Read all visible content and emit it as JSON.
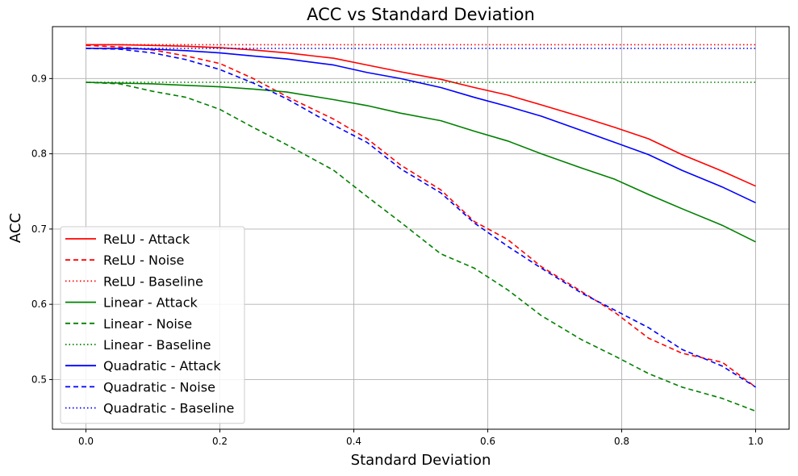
{
  "chart_data": {
    "type": "line",
    "title": "ACC vs Standard Deviation",
    "xlabel": "Standard Deviation",
    "ylabel": "ACC",
    "xlim": [
      -0.05,
      1.05
    ],
    "ylim": [
      0.434,
      0.969
    ],
    "xticks": [
      0.0,
      0.2,
      0.4,
      0.6,
      0.8,
      1.0
    ],
    "xtick_labels": [
      "0.0",
      "0.2",
      "0.4",
      "0.6",
      "0.8",
      "1.0"
    ],
    "yticks": [
      0.5,
      0.6,
      0.7,
      0.8,
      0.9
    ],
    "ytick_labels": [
      "0.5",
      "0.6",
      "0.7",
      "0.8",
      "0.9"
    ],
    "grid": true,
    "legend": "lower-left",
    "series": [
      {
        "name": "ReLU - Attack",
        "color": "#ff0000",
        "style": "solid",
        "x": [
          0.0,
          0.05,
          0.1,
          0.15,
          0.2,
          0.25,
          0.3,
          0.37,
          0.42,
          0.47,
          0.53,
          0.58,
          0.63,
          0.68,
          0.74,
          0.79,
          0.84,
          0.89,
          0.95,
          1.0
        ],
        "y": [
          0.945,
          0.945,
          0.944,
          0.943,
          0.941,
          0.938,
          0.934,
          0.927,
          0.918,
          0.909,
          0.899,
          0.888,
          0.878,
          0.865,
          0.849,
          0.835,
          0.82,
          0.799,
          0.777,
          0.757
        ]
      },
      {
        "name": "ReLU - Noise",
        "color": "#ff0000",
        "style": "dashed",
        "x": [
          0.0,
          0.05,
          0.1,
          0.15,
          0.2,
          0.25,
          0.3,
          0.37,
          0.42,
          0.47,
          0.53,
          0.58,
          0.63,
          0.68,
          0.74,
          0.79,
          0.84,
          0.89,
          0.95,
          1.0
        ],
        "y": [
          0.944,
          0.942,
          0.938,
          0.93,
          0.92,
          0.9,
          0.876,
          0.846,
          0.82,
          0.785,
          0.752,
          0.71,
          0.686,
          0.65,
          0.617,
          0.589,
          0.555,
          0.535,
          0.523,
          0.49
        ]
      },
      {
        "name": "ReLU - Baseline",
        "color": "#ff0000",
        "style": "dotted",
        "x": [
          0.0,
          1.0
        ],
        "y": [
          0.945,
          0.945
        ]
      },
      {
        "name": "Linear - Attack",
        "color": "#008000",
        "style": "solid",
        "x": [
          0.0,
          0.05,
          0.1,
          0.15,
          0.2,
          0.25,
          0.3,
          0.37,
          0.42,
          0.47,
          0.53,
          0.58,
          0.63,
          0.68,
          0.74,
          0.79,
          0.84,
          0.89,
          0.95,
          1.0
        ],
        "y": [
          0.895,
          0.894,
          0.893,
          0.891,
          0.889,
          0.886,
          0.882,
          0.872,
          0.864,
          0.854,
          0.844,
          0.83,
          0.817,
          0.8,
          0.781,
          0.766,
          0.746,
          0.727,
          0.705,
          0.683
        ]
      },
      {
        "name": "Linear - Noise",
        "color": "#008000",
        "style": "dashed",
        "x": [
          0.0,
          0.05,
          0.1,
          0.15,
          0.2,
          0.25,
          0.3,
          0.37,
          0.42,
          0.47,
          0.53,
          0.58,
          0.63,
          0.68,
          0.74,
          0.79,
          0.84,
          0.89,
          0.95,
          1.0
        ],
        "y": [
          0.895,
          0.893,
          0.883,
          0.875,
          0.859,
          0.835,
          0.812,
          0.778,
          0.743,
          0.709,
          0.667,
          0.648,
          0.619,
          0.585,
          0.553,
          0.531,
          0.508,
          0.49,
          0.475,
          0.458
        ]
      },
      {
        "name": "Linear - Baseline",
        "color": "#008000",
        "style": "dotted",
        "x": [
          0.0,
          1.0
        ],
        "y": [
          0.895,
          0.895
        ]
      },
      {
        "name": "Quadratic - Attack",
        "color": "#0000ff",
        "style": "solid",
        "x": [
          0.0,
          0.05,
          0.1,
          0.15,
          0.2,
          0.25,
          0.3,
          0.37,
          0.42,
          0.47,
          0.53,
          0.58,
          0.63,
          0.68,
          0.74,
          0.79,
          0.84,
          0.89,
          0.95,
          1.0
        ],
        "y": [
          0.94,
          0.94,
          0.939,
          0.937,
          0.934,
          0.93,
          0.926,
          0.918,
          0.908,
          0.9,
          0.888,
          0.875,
          0.863,
          0.85,
          0.831,
          0.815,
          0.799,
          0.778,
          0.756,
          0.735
        ]
      },
      {
        "name": "Quadratic - Noise",
        "color": "#0000ff",
        "style": "dashed",
        "x": [
          0.0,
          0.05,
          0.1,
          0.15,
          0.2,
          0.25,
          0.3,
          0.37,
          0.42,
          0.47,
          0.53,
          0.58,
          0.63,
          0.68,
          0.74,
          0.79,
          0.84,
          0.89,
          0.95,
          1.0
        ],
        "y": [
          0.94,
          0.939,
          0.934,
          0.925,
          0.912,
          0.894,
          0.873,
          0.838,
          0.815,
          0.78,
          0.748,
          0.708,
          0.677,
          0.648,
          0.615,
          0.592,
          0.569,
          0.54,
          0.518,
          0.49
        ]
      },
      {
        "name": "Quadratic - Baseline",
        "color": "#0000ff",
        "style": "dotted",
        "x": [
          0.0,
          1.0
        ],
        "y": [
          0.94,
          0.94
        ]
      }
    ]
  }
}
